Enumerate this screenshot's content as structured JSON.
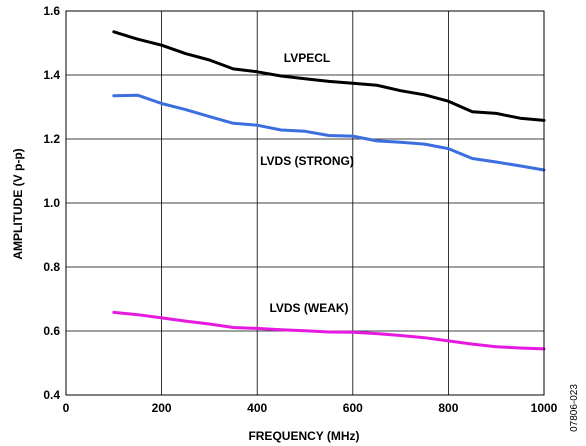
{
  "chart_data": {
    "type": "line",
    "xlabel": "FREQUENCY (MHz)",
    "ylabel": "AMPLITUDE (V p-p)",
    "xlim": [
      0,
      1000
    ],
    "ylim": [
      0.4,
      1.6
    ],
    "x_ticks": [
      0,
      200,
      400,
      600,
      800,
      1000
    ],
    "y_ticks": [
      0.4,
      0.6,
      0.8,
      1.0,
      1.2,
      1.4,
      1.6
    ],
    "x_tick_labels": [
      "0",
      "200",
      "400",
      "600",
      "800",
      "1000"
    ],
    "y_tick_labels": [
      "0.4",
      "0.6",
      "0.8",
      "1.0",
      "1.2",
      "1.4",
      "1.6"
    ],
    "grid": true,
    "series": [
      {
        "name": "LVPECL",
        "color": "#000000",
        "x": [
          100,
          150,
          200,
          250,
          300,
          350,
          400,
          450,
          500,
          550,
          600,
          650,
          700,
          750,
          800,
          850,
          900,
          950,
          1000
        ],
        "values": [
          1.535,
          1.512,
          1.493,
          1.467,
          1.447,
          1.419,
          1.41,
          1.397,
          1.388,
          1.38,
          1.374,
          1.368,
          1.351,
          1.338,
          1.318,
          1.285,
          1.28,
          1.265,
          1.258
        ]
      },
      {
        "name": "LVDS (STRONG)",
        "color": "#3b6fe0",
        "x": [
          100,
          150,
          200,
          250,
          300,
          350,
          400,
          450,
          500,
          550,
          600,
          650,
          700,
          750,
          800,
          850,
          900,
          950,
          1000
        ],
        "values": [
          1.335,
          1.337,
          1.311,
          1.292,
          1.27,
          1.249,
          1.243,
          1.228,
          1.224,
          1.211,
          1.209,
          1.194,
          1.19,
          1.184,
          1.17,
          1.139,
          1.128,
          1.116,
          1.103
        ]
      },
      {
        "name": "LVDS (WEAK)",
        "color": "#e619e0",
        "x": [
          100,
          150,
          200,
          250,
          300,
          350,
          400,
          450,
          500,
          550,
          600,
          650,
          700,
          750,
          800,
          850,
          900,
          950,
          1000
        ],
        "values": [
          0.658,
          0.651,
          0.641,
          0.631,
          0.622,
          0.611,
          0.608,
          0.604,
          0.601,
          0.597,
          0.596,
          0.592,
          0.586,
          0.579,
          0.569,
          0.559,
          0.551,
          0.547,
          0.544
        ]
      }
    ],
    "series_labels": [
      "LVPECL",
      "LVDS (STRONG)",
      "LVDS (WEAK)"
    ],
    "figure_id": "07806-023"
  }
}
